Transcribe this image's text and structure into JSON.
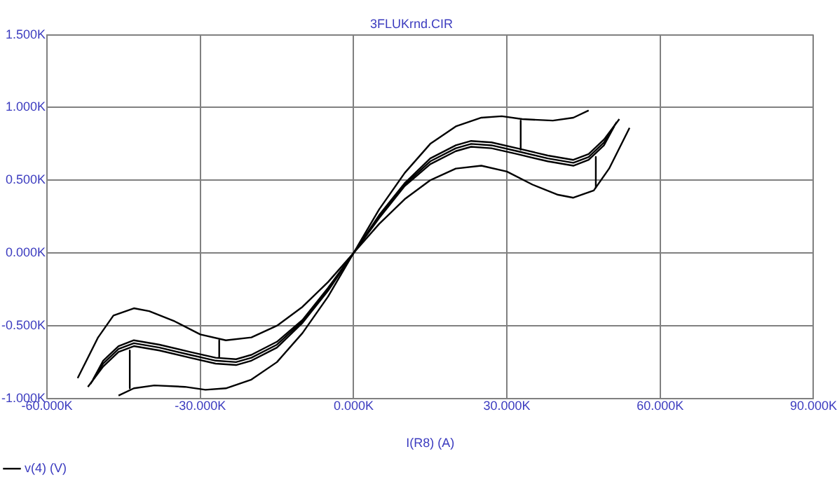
{
  "chart_data": {
    "type": "line",
    "title": "3FLUKrnd.CIR",
    "xlabel": "I(R8) (A)",
    "xlim": [
      -60000,
      90000
    ],
    "ylim": [
      -1000,
      1500
    ],
    "xticks": [
      {
        "value": -60000,
        "label": "-60.000K"
      },
      {
        "value": -30000,
        "label": "-30.000K"
      },
      {
        "value": 0,
        "label": "0.000K"
      },
      {
        "value": 30000,
        "label": "30.000K"
      },
      {
        "value": 60000,
        "label": "60.000K"
      },
      {
        "value": 90000,
        "label": "90.000K"
      }
    ],
    "yticks": [
      {
        "value": -1000,
        "label": "-1.000K"
      },
      {
        "value": -500,
        "label": "-0.500K"
      },
      {
        "value": 0,
        "label": "0.000K"
      },
      {
        "value": 500,
        "label": "0.500K"
      },
      {
        "value": 1000,
        "label": "1.000K"
      },
      {
        "value": 1500,
        "label": "1.500K"
      }
    ],
    "grid": true,
    "legend": "bottom left",
    "marker": "none",
    "line_style": "solid",
    "series": [
      {
        "name": "v(4) (V)",
        "color": "#000000",
        "x": [
          -46000,
          -43000,
          -39000,
          -33000,
          -29000,
          -25000,
          -20000,
          -15000,
          -10000,
          -5000,
          0,
          5000,
          10000,
          15000,
          20000,
          25000,
          29000,
          33000,
          39000,
          43000,
          46000
        ],
        "values": [
          -980,
          -930,
          -910,
          -920,
          -940,
          -930,
          -870,
          -750,
          -550,
          -300,
          0,
          300,
          550,
          750,
          870,
          930,
          940,
          920,
          910,
          930,
          980
        ]
      },
      {
        "color": "#000000",
        "x": [
          -52000,
          -49000,
          -46000,
          -43000,
          -38000,
          -32000,
          -27000,
          -23000,
          -20000,
          -15000,
          -10000,
          -5000,
          0,
          5000,
          10000,
          15000,
          20000,
          23000,
          27000,
          32000,
          38000,
          43000,
          46000,
          49000,
          52000
        ],
        "values": [
          -920,
          -780,
          -680,
          -640,
          -670,
          -720,
          -760,
          -770,
          -740,
          -650,
          -480,
          -260,
          0,
          260,
          480,
          650,
          740,
          770,
          760,
          720,
          670,
          640,
          680,
          780,
          920
        ]
      },
      {
        "color": "#000000",
        "x": [
          -51500,
          -49000,
          -46000,
          -43000,
          -38000,
          -32000,
          -27000,
          -23000,
          -20000,
          -15000,
          -10000,
          -5000,
          0,
          5000,
          10000,
          15000,
          20000,
          23000,
          27000,
          32000,
          38000,
          43000,
          46000,
          49000,
          51500
        ],
        "values": [
          -900,
          -760,
          -660,
          -620,
          -650,
          -700,
          -740,
          -750,
          -720,
          -630,
          -470,
          -250,
          0,
          250,
          470,
          630,
          720,
          750,
          740,
          700,
          650,
          620,
          660,
          760,
          900
        ]
      },
      {
        "color": "#000000",
        "x": [
          -51000,
          -49000,
          -46000,
          -43000,
          -38000,
          -32000,
          -27000,
          -23000,
          -20000,
          -15000,
          -10000,
          -5000,
          0,
          5000,
          10000,
          15000,
          20000,
          23000,
          27000,
          32000,
          38000,
          43000,
          46000,
          49000,
          51000
        ],
        "values": [
          -870,
          -740,
          -640,
          -600,
          -630,
          -680,
          -720,
          -730,
          -700,
          -610,
          -460,
          -240,
          0,
          240,
          460,
          610,
          700,
          730,
          720,
          680,
          630,
          600,
          640,
          740,
          870
        ]
      },
      {
        "color": "#000000",
        "x": [
          -54000,
          -50000,
          -47000,
          -43000,
          -40000,
          -35000,
          -30000,
          -25000,
          -20000,
          -15000,
          -10000,
          -5000,
          0,
          5000,
          10000,
          15000,
          20000,
          25000,
          30000,
          35000,
          40000,
          43000,
          47000,
          50000,
          54000
        ],
        "values": [
          -860,
          -580,
          -430,
          -380,
          -400,
          -470,
          -560,
          -600,
          -580,
          -500,
          -370,
          -200,
          0,
          200,
          370,
          500,
          580,
          600,
          560,
          470,
          400,
          380,
          430,
          580,
          860
        ]
      },
      {
        "color": "#000000",
        "x": [
          32700,
          32700
        ],
        "values": [
          910,
          710
        ]
      },
      {
        "color": "#000000",
        "x": [
          47400,
          47400
        ],
        "values": [
          660,
          450
        ]
      },
      {
        "color": "#000000",
        "x": [
          -43800,
          -43800
        ],
        "values": [
          -670,
          -930
        ]
      },
      {
        "color": "#000000",
        "x": [
          -26300,
          -26300
        ],
        "values": [
          -600,
          -720
        ]
      }
    ]
  }
}
